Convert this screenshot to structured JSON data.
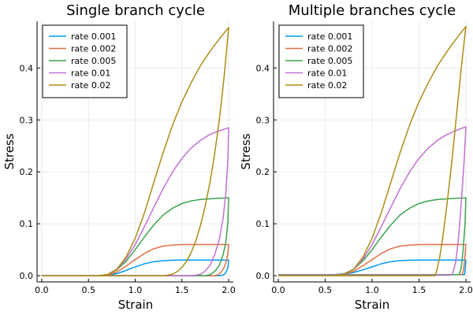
{
  "chart_data": [
    {
      "type": "line",
      "title": "Single branch cycle",
      "xlabel": "Strain",
      "ylabel": "Stress",
      "xlim": [
        -0.05,
        2.05
      ],
      "ylim": [
        -0.012,
        0.49
      ],
      "xticks": [
        0.0,
        0.5,
        1.0,
        1.5,
        2.0
      ],
      "xtick_labels": [
        "0.0",
        "0.5",
        "1.0",
        "1.5",
        "2.0"
      ],
      "yticks": [
        0.0,
        0.1,
        0.2,
        0.3,
        0.4
      ],
      "ytick_labels": [
        "0.0",
        "0.1",
        "0.2",
        "0.3",
        "0.4"
      ],
      "grid": true,
      "legend_position": "top-left",
      "series": [
        {
          "name": "rate 0.001",
          "color": "#009af9",
          "x": [
            0.0,
            0.6,
            0.7,
            0.8,
            0.9,
            1.0,
            1.1,
            1.2,
            1.3,
            1.4,
            1.5,
            1.6,
            1.7,
            1.8,
            1.9,
            2.0,
            1.995,
            1.985,
            1.97,
            1.95,
            1.9,
            1.8,
            1.0,
            0.0
          ],
          "y": [
            0.0,
            0.0,
            0.0008,
            0.004,
            0.01,
            0.017,
            0.023,
            0.027,
            0.029,
            0.0298,
            0.03,
            0.03,
            0.03,
            0.03,
            0.03,
            0.03,
            0.02,
            0.012,
            0.006,
            0.002,
            0.0,
            0.0,
            0.0,
            0.0
          ]
        },
        {
          "name": "rate 0.002",
          "color": "#e26f46",
          "x": [
            0.0,
            0.6,
            0.7,
            0.8,
            0.9,
            1.0,
            1.1,
            1.2,
            1.3,
            1.4,
            1.5,
            1.6,
            1.7,
            1.8,
            1.9,
            2.0,
            1.99,
            1.97,
            1.95,
            1.92,
            1.89,
            1.85,
            1.8,
            1.0,
            0.0
          ],
          "y": [
            0.0,
            0.0,
            0.001,
            0.007,
            0.018,
            0.031,
            0.043,
            0.052,
            0.057,
            0.059,
            0.06,
            0.06,
            0.06,
            0.06,
            0.06,
            0.06,
            0.04,
            0.025,
            0.015,
            0.007,
            0.002,
            0.0,
            0.0,
            0.0,
            0.0
          ]
        },
        {
          "name": "rate 0.005",
          "color": "#3da44d",
          "x": [
            0.0,
            0.6,
            0.7,
            0.8,
            0.9,
            1.0,
            1.1,
            1.2,
            1.3,
            1.4,
            1.5,
            1.6,
            1.7,
            1.8,
            1.9,
            2.0,
            1.99,
            1.97,
            1.94,
            1.9,
            1.85,
            1.8,
            1.75,
            1.7,
            1.0,
            0.0
          ],
          "y": [
            0.0,
            0.0,
            0.002,
            0.011,
            0.027,
            0.05,
            0.075,
            0.098,
            0.117,
            0.13,
            0.139,
            0.144,
            0.147,
            0.148,
            0.149,
            0.15,
            0.1,
            0.065,
            0.04,
            0.02,
            0.008,
            0.002,
            0.0,
            0.0,
            0.0,
            0.0
          ]
        },
        {
          "name": "rate 0.01",
          "color": "#c271d2",
          "x": [
            0.0,
            0.6,
            0.7,
            0.8,
            0.9,
            1.0,
            1.1,
            1.2,
            1.3,
            1.4,
            1.5,
            1.6,
            1.7,
            1.8,
            1.9,
            2.0,
            1.99,
            1.97,
            1.94,
            1.9,
            1.85,
            1.8,
            1.75,
            1.7,
            1.65,
            1.6,
            1.0,
            0.0
          ],
          "y": [
            0.0,
            0.0,
            0.002,
            0.012,
            0.031,
            0.06,
            0.095,
            0.132,
            0.168,
            0.2,
            0.226,
            0.246,
            0.261,
            0.272,
            0.279,
            0.285,
            0.22,
            0.16,
            0.11,
            0.07,
            0.04,
            0.02,
            0.009,
            0.003,
            0.001,
            0.0,
            0.0,
            0.0
          ]
        },
        {
          "name": "rate 0.02",
          "color": "#ac8d18",
          "x": [
            0.0,
            0.6,
            0.7,
            0.8,
            0.9,
            1.0,
            1.1,
            1.2,
            1.3,
            1.4,
            1.5,
            1.6,
            1.7,
            1.8,
            1.9,
            2.0,
            1.95,
            1.9,
            1.85,
            1.8,
            1.75,
            1.7,
            1.65,
            1.6,
            1.55,
            1.5,
            1.45,
            1.4,
            1.35,
            1.3,
            1.25,
            1.0,
            0.0
          ],
          "y": [
            0.0,
            0.0,
            0.002,
            0.012,
            0.035,
            0.072,
            0.122,
            0.18,
            0.238,
            0.29,
            0.335,
            0.372,
            0.405,
            0.432,
            0.456,
            0.478,
            0.38,
            0.3,
            0.235,
            0.18,
            0.135,
            0.098,
            0.068,
            0.045,
            0.028,
            0.016,
            0.008,
            0.003,
            0.001,
            0.0,
            0.0,
            0.0,
            0.0
          ]
        }
      ]
    },
    {
      "type": "line",
      "title": "Multiple branches cycle",
      "xlabel": "Strain",
      "ylabel": "Stress",
      "xlim": [
        -0.05,
        2.05
      ],
      "ylim": [
        -0.012,
        0.49
      ],
      "xticks": [
        0.0,
        0.5,
        1.0,
        1.5,
        2.0
      ],
      "xtick_labels": [
        "0.0",
        "0.5",
        "1.0",
        "1.5",
        "2.0"
      ],
      "yticks": [
        0.0,
        0.1,
        0.2,
        0.3,
        0.4
      ],
      "ytick_labels": [
        "0.0",
        "0.1",
        "0.2",
        "0.3",
        "0.4"
      ],
      "grid": true,
      "legend_position": "top-left",
      "series": [
        {
          "name": "rate 0.001",
          "color": "#009af9",
          "x": [
            0.0,
            0.6,
            0.7,
            0.8,
            0.9,
            1.0,
            1.1,
            1.2,
            1.3,
            1.4,
            1.5,
            1.6,
            1.7,
            1.8,
            1.9,
            2.0,
            1.995,
            1.99,
            1.985,
            1.98,
            1.0,
            0.0
          ],
          "y": [
            0.002,
            0.002,
            0.003,
            0.006,
            0.011,
            0.017,
            0.023,
            0.027,
            0.029,
            0.0298,
            0.03,
            0.03,
            0.03,
            0.03,
            0.03,
            0.03,
            0.02,
            0.01,
            0.003,
            0.002,
            0.002,
            0.002
          ]
        },
        {
          "name": "rate 0.002",
          "color": "#e26f46",
          "x": [
            0.0,
            0.6,
            0.7,
            0.8,
            0.9,
            1.0,
            1.1,
            1.2,
            1.3,
            1.4,
            1.5,
            1.6,
            1.7,
            1.8,
            1.9,
            2.0,
            1.99,
            1.98,
            1.97,
            1.96,
            1.95,
            1.0,
            0.0
          ],
          "y": [
            0.002,
            0.002,
            0.003,
            0.008,
            0.019,
            0.031,
            0.043,
            0.052,
            0.057,
            0.059,
            0.06,
            0.06,
            0.06,
            0.06,
            0.06,
            0.06,
            0.04,
            0.02,
            0.008,
            0.003,
            0.002,
            0.002,
            0.002
          ]
        },
        {
          "name": "rate 0.005",
          "color": "#3da44d",
          "x": [
            0.0,
            0.6,
            0.7,
            0.8,
            0.9,
            1.0,
            1.1,
            1.2,
            1.3,
            1.4,
            1.5,
            1.6,
            1.7,
            1.8,
            1.9,
            2.0,
            1.99,
            1.97,
            1.95,
            1.93,
            1.92,
            1.0,
            0.0
          ],
          "y": [
            0.002,
            0.002,
            0.004,
            0.012,
            0.028,
            0.05,
            0.075,
            0.098,
            0.117,
            0.13,
            0.139,
            0.144,
            0.147,
            0.148,
            0.149,
            0.15,
            0.1,
            0.05,
            0.015,
            0.003,
            0.002,
            0.002,
            0.002
          ]
        },
        {
          "name": "rate 0.01",
          "color": "#c271d2",
          "x": [
            0.0,
            0.6,
            0.7,
            0.8,
            0.9,
            1.0,
            1.1,
            1.2,
            1.3,
            1.4,
            1.5,
            1.6,
            1.7,
            1.8,
            1.9,
            2.0,
            1.98,
            1.95,
            1.92,
            1.89,
            1.86,
            1.84,
            1.0,
            0.0
          ],
          "y": [
            0.001,
            0.001,
            0.003,
            0.012,
            0.031,
            0.06,
            0.095,
            0.132,
            0.168,
            0.2,
            0.226,
            0.246,
            0.261,
            0.272,
            0.28,
            0.287,
            0.22,
            0.14,
            0.07,
            0.025,
            0.005,
            0.001,
            0.001,
            0.001
          ]
        },
        {
          "name": "rate 0.02",
          "color": "#ac8d18",
          "x": [
            0.0,
            0.6,
            0.7,
            0.8,
            0.9,
            1.0,
            1.1,
            1.2,
            1.3,
            1.4,
            1.5,
            1.6,
            1.7,
            1.8,
            1.9,
            2.0,
            1.95,
            1.9,
            1.85,
            1.8,
            1.75,
            1.72,
            1.69,
            1.67,
            1.0,
            0.0
          ],
          "y": [
            0.0,
            0.0,
            0.002,
            0.012,
            0.035,
            0.072,
            0.122,
            0.18,
            0.238,
            0.29,
            0.335,
            0.372,
            0.405,
            0.432,
            0.457,
            0.48,
            0.4,
            0.31,
            0.22,
            0.14,
            0.07,
            0.035,
            0.01,
            0.0,
            0.0,
            0.0
          ]
        }
      ]
    }
  ]
}
